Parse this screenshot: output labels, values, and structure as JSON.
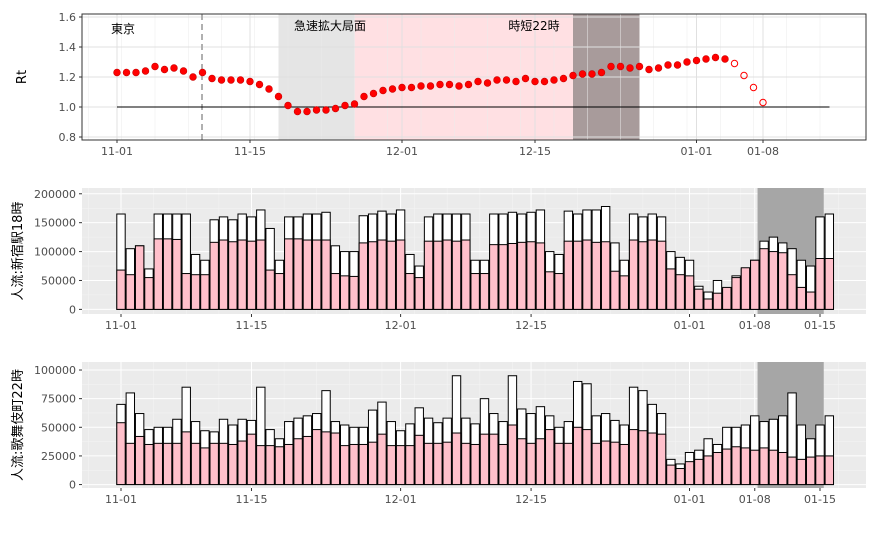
{
  "chart_data": [
    {
      "type": "scatter",
      "label": "東京",
      "ylabel": "Rt",
      "ylim": [
        0.78,
        1.62
      ],
      "yticks": [
        "0.8",
        "1.0",
        "1.2",
        "1.4",
        "1.6"
      ],
      "xticks": [
        "11-01",
        "11-15",
        "12-01",
        "12-15",
        "01-01",
        "01-08"
      ],
      "reference_line": 1.0,
      "bands": [
        {
          "label": "急速拡大局面",
          "color": "#e5e5e5"
        },
        {
          "label": "時短22時",
          "color": "#ffe0e3"
        },
        {
          "label": "",
          "color": "#a89b9b"
        }
      ],
      "solid_values": [
        1.23,
        1.23,
        1.23,
        1.24,
        1.27,
        1.25,
        1.26,
        1.24,
        1.2,
        1.23,
        1.19,
        1.18,
        1.18,
        1.18,
        1.17,
        1.15,
        1.12,
        1.07,
        1.01,
        0.97,
        0.97,
        0.98,
        0.98,
        0.99,
        1.01,
        1.02,
        1.07,
        1.09,
        1.11,
        1.12,
        1.13,
        1.13,
        1.14,
        1.14,
        1.15,
        1.15,
        1.14,
        1.15,
        1.17,
        1.16,
        1.18,
        1.18,
        1.17,
        1.19,
        1.17,
        1.17,
        1.18,
        1.19,
        1.21,
        1.22,
        1.22,
        1.23,
        1.27,
        1.27,
        1.26,
        1.27,
        1.25,
        1.26,
        1.28,
        1.28,
        1.3,
        1.31,
        1.32,
        1.33,
        1.32
      ],
      "hollow_values": [
        1.29,
        1.21,
        1.13,
        1.03
      ]
    },
    {
      "type": "bar",
      "ylabel": "人流:新宿駅18時",
      "ylim": [
        -8000,
        210000
      ],
      "yticks": [
        "0",
        "50000",
        "100000",
        "150000",
        "200000"
      ],
      "xticks": [
        "11-01",
        "11-15",
        "12-01",
        "12-15",
        "01-01",
        "01-08",
        "01-15"
      ],
      "series": [
        {
          "role": "total",
          "color": "#ffffff",
          "values": [
            165000,
            105000,
            110000,
            70000,
            165000,
            165000,
            165000,
            165000,
            95000,
            85000,
            155000,
            160000,
            155000,
            165000,
            160000,
            172000,
            140000,
            85000,
            160000,
            160000,
            165000,
            165000,
            168000,
            110000,
            100000,
            100000,
            162000,
            165000,
            170000,
            165000,
            172000,
            95000,
            75000,
            160000,
            165000,
            165000,
            165000,
            165000,
            85000,
            85000,
            165000,
            165000,
            168000,
            165000,
            168000,
            172000,
            100000,
            95000,
            170000,
            165000,
            172000,
            172000,
            178000,
            115000,
            85000,
            165000,
            160000,
            165000,
            160000,
            100000,
            90000,
            85000,
            40000,
            30000,
            50000,
            35000,
            58000,
            70000,
            85000,
            118000,
            125000,
            115000,
            105000,
            85000,
            75000,
            160000,
            165000
          ]
        },
        {
          "role": "portion",
          "color": "#ffc0cb",
          "values": [
            68000,
            60000,
            110000,
            55000,
            122000,
            122000,
            121000,
            62000,
            60000,
            60000,
            116000,
            120000,
            117000,
            120000,
            118000,
            120000,
            68000,
            62000,
            122000,
            122000,
            120000,
            120000,
            120000,
            62000,
            58000,
            57000,
            115000,
            117000,
            120000,
            118000,
            120000,
            62000,
            55000,
            118000,
            118000,
            120000,
            118000,
            120000,
            62000,
            62000,
            112000,
            112000,
            114000,
            116000,
            117000,
            115000,
            65000,
            62000,
            118000,
            118000,
            120000,
            116000,
            117000,
            66000,
            58000,
            120000,
            117000,
            120000,
            118000,
            70000,
            60000,
            58000,
            35000,
            18000,
            28000,
            38000,
            55000,
            72000,
            85000,
            105000,
            100000,
            98000,
            60000,
            38000,
            30000,
            88000,
            88000
          ]
        }
      ]
    },
    {
      "type": "bar",
      "ylabel": "人流:歌舞伎町22時",
      "ylim": [
        -3000,
        107000
      ],
      "yticks": [
        "0",
        "25000",
        "50000",
        "75000",
        "100000"
      ],
      "xticks": [
        "11-01",
        "11-15",
        "12-01",
        "12-15",
        "01-01",
        "01-08",
        "01-15"
      ],
      "series": [
        {
          "role": "total",
          "color": "#ffffff",
          "values": [
            70000,
            80000,
            62000,
            48000,
            50000,
            50000,
            57000,
            85000,
            55000,
            47000,
            46000,
            57000,
            52000,
            57000,
            56000,
            85000,
            48000,
            40000,
            55000,
            58000,
            60000,
            62000,
            82000,
            55000,
            52000,
            50000,
            50000,
            65000,
            72000,
            55000,
            47000,
            53000,
            67000,
            58000,
            54000,
            58000,
            95000,
            58000,
            53000,
            75000,
            62000,
            55000,
            95000,
            66000,
            62000,
            68000,
            60000,
            50000,
            55000,
            90000,
            88000,
            60000,
            62000,
            56000,
            52000,
            85000,
            82000,
            70000,
            62000,
            22000,
            18000,
            28000,
            30000,
            40000,
            35000,
            50000,
            50000,
            52000,
            60000,
            55000,
            57000,
            60000,
            80000,
            52000,
            40000,
            52000,
            60000
          ]
        },
        {
          "role": "portion",
          "color": "#ffc0cb",
          "values": [
            54000,
            36000,
            42000,
            35000,
            36000,
            36000,
            36000,
            46000,
            36000,
            32000,
            36000,
            36000,
            35000,
            38000,
            44000,
            34000,
            34000,
            33000,
            35000,
            40000,
            42000,
            48000,
            46000,
            45000,
            34000,
            35000,
            35000,
            37000,
            44000,
            34000,
            34000,
            34000,
            43000,
            36000,
            36000,
            37000,
            45000,
            36000,
            35000,
            44000,
            44000,
            35000,
            52000,
            40000,
            36000,
            40000,
            48000,
            36000,
            36000,
            50000,
            48000,
            36000,
            38000,
            37000,
            35000,
            48000,
            47000,
            45000,
            44000,
            17000,
            14000,
            20000,
            22000,
            25000,
            28000,
            31000,
            33000,
            32000,
            30000,
            32000,
            30000,
            28000,
            24000,
            22000,
            24000,
            25000,
            25000
          ]
        }
      ]
    }
  ]
}
